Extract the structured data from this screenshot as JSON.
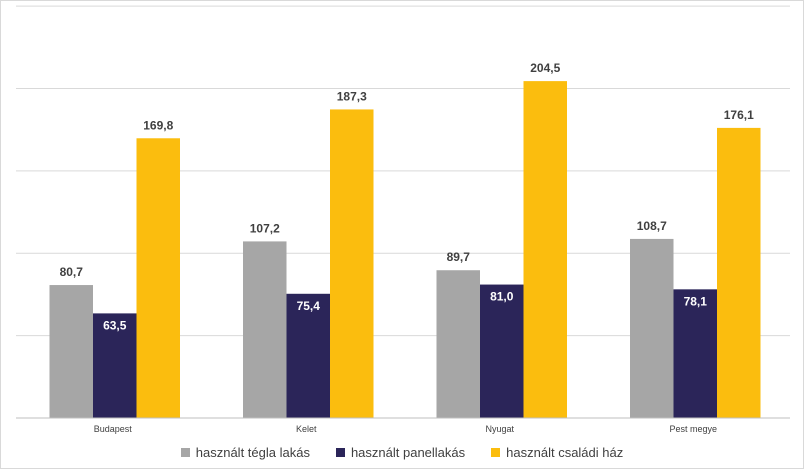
{
  "chart_data": {
    "type": "bar",
    "title": "",
    "xlabel": "",
    "ylabel": "",
    "categories": [
      "Budapest",
      "Kelet",
      "Nyugat",
      "Pest megye"
    ],
    "series": [
      {
        "name": "használt tégla lakás",
        "values": [
          80.7,
          107.2,
          89.7,
          108.7
        ],
        "labels": [
          "80,7",
          "107,2",
          "89,7",
          "108,7"
        ],
        "color": "#a6a6a6"
      },
      {
        "name": "használt panellakás",
        "values": [
          63.5,
          75.4,
          81.0,
          78.1
        ],
        "labels": [
          "63,5",
          "75,4",
          "81,0",
          "78,1"
        ],
        "color": "#2b2559"
      },
      {
        "name": "használt családi ház",
        "values": [
          169.8,
          187.3,
          204.5,
          176.1
        ],
        "labels": [
          "169,8",
          "187,3",
          "204,5",
          "176,1"
        ],
        "color": "#fbbd0e"
      }
    ],
    "ylim": [
      0,
      250
    ],
    "gridlines": [
      50,
      100,
      150,
      200,
      250
    ],
    "grid": true,
    "legend": "bottom"
  }
}
